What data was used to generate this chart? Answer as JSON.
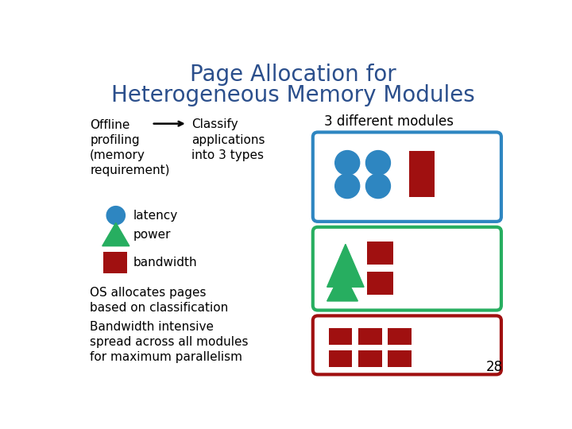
{
  "title_line1": "Page Allocation for",
  "title_line2": "Heterogeneous Memory Modules",
  "title_color": "#2B4F8C",
  "title_fontsize": 20,
  "bg_color": "#FFFFFF",
  "blue_color": "#2E86C1",
  "green_color": "#27AE60",
  "red_color": "#A01010",
  "page_number": "28"
}
